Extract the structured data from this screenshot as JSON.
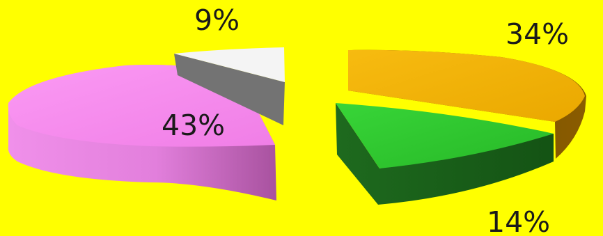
{
  "background_color": "#ffff00",
  "chart_data": {
    "type": "pie",
    "style": "3d-exploded",
    "slices": [
      {
        "label": "43%",
        "value": 43,
        "color": "#f98bf0"
      },
      {
        "label": "9%",
        "value": 9,
        "color": "#f2f2f2"
      },
      {
        "label": "34%",
        "value": 34,
        "color": "#f5b400"
      },
      {
        "label": "14%",
        "value": 14,
        "color": "#2fc82f"
      }
    ]
  }
}
